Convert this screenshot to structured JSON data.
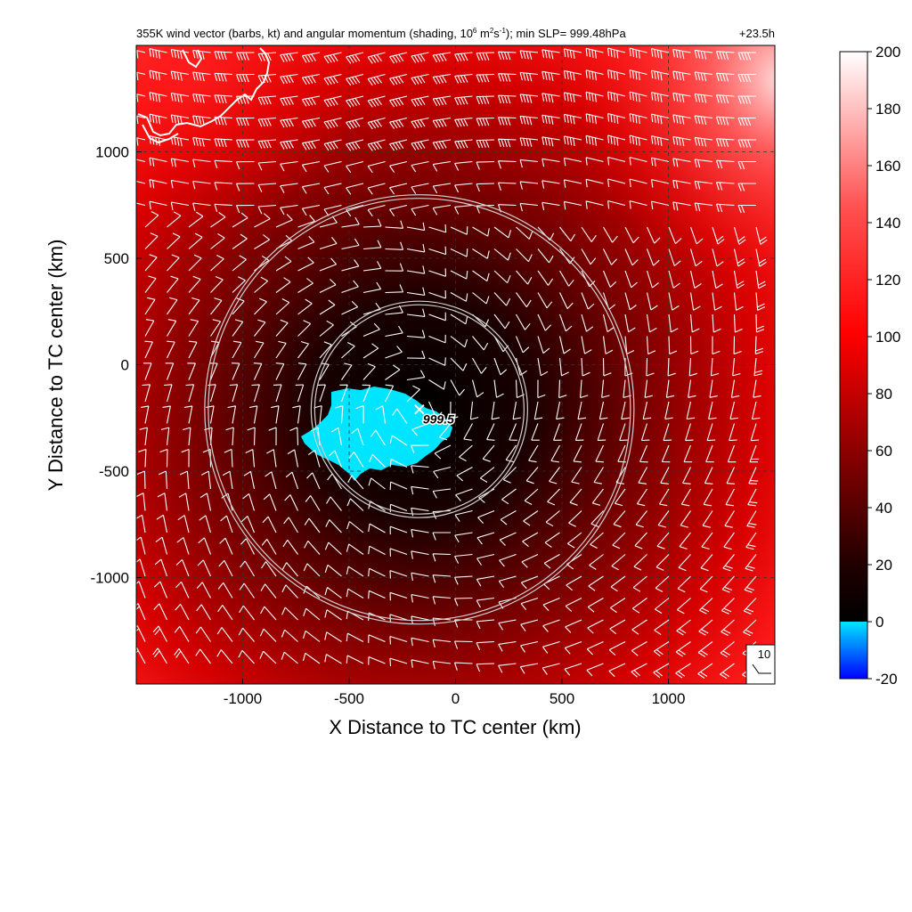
{
  "chart_data": {
    "type": "heatmap",
    "title_main": "355K wind vector (barbs, kt) and angular momentum (shading, 10",
    "title_exp": "6",
    "title_unit1": " m",
    "title_unit1_exp": "2",
    "title_unit2": "s",
    "title_unit2_exp": "-1",
    "title_tail": "); min SLP= 999.48hPa",
    "time_label": "+23.5h",
    "xlabel": "X Distance to TC center (km)",
    "ylabel": "Y Distance to TC center (km)",
    "xlim": [
      -1500,
      1500
    ],
    "ylim": [
      -1500,
      1500
    ],
    "xticks": [
      -1000,
      -500,
      0,
      500,
      1000
    ],
    "yticks": [
      -1000,
      -500,
      0,
      500,
      1000
    ],
    "grid": true,
    "colorbar": {
      "min": -20,
      "max": 200,
      "ticks": [
        -20,
        0,
        20,
        40,
        60,
        80,
        100,
        120,
        140,
        160,
        180,
        200
      ],
      "colormap": [
        "#0000ff",
        "#00e5ff",
        "#000000",
        "#ff0000",
        "#ffffff"
      ]
    },
    "center_marker": {
      "x": -170,
      "y": -210,
      "label": "999.5"
    },
    "circles": [
      {
        "cx": -170,
        "cy": -210,
        "r": 500
      },
      {
        "cx": -170,
        "cy": -210,
        "r": 1000
      }
    ],
    "reference_barb": {
      "label": "10",
      "speed_kt": 10
    },
    "colors": {
      "negative": "#00e5ff",
      "high": "#ff0000",
      "circle": "#d0d0d0"
    }
  }
}
